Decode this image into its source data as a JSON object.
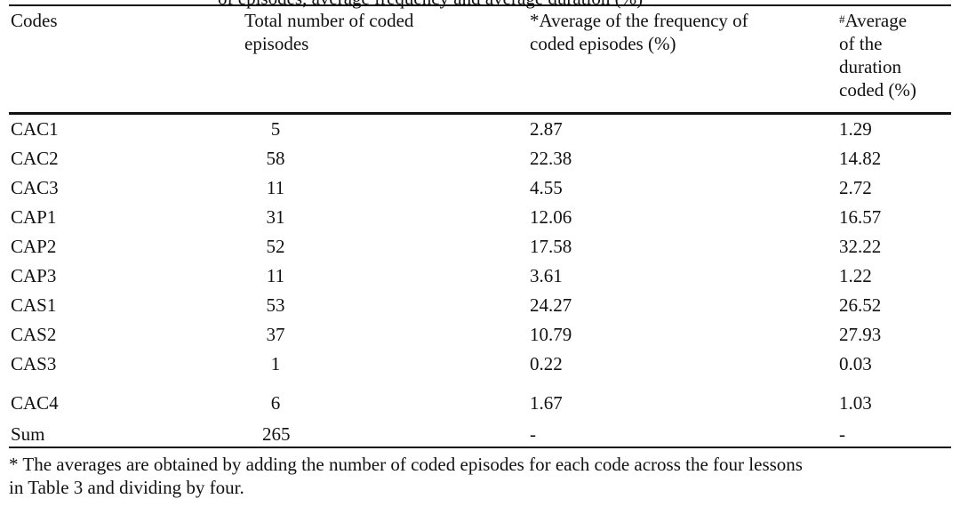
{
  "caption_fragment": "of episodes, average frequency and average duration (%)",
  "headers": {
    "codes": "Codes",
    "total_line1": "Total number of coded",
    "total_line2": "episodes",
    "freq_line1": "*Average of the frequency of",
    "freq_line2": "coded episodes (%)",
    "dur_sup": "#",
    "dur_line1": "Average",
    "dur_line2": "of the",
    "dur_line3": "duration",
    "dur_line4": "coded (%)"
  },
  "rows": [
    {
      "code": "CAC1",
      "total": "5",
      "freq": "2.87",
      "dur": "1.29"
    },
    {
      "code": "CAC2",
      "total": "58",
      "freq": "22.38",
      "dur": "14.82"
    },
    {
      "code": "CAC3",
      "total": "11",
      "freq": "4.55",
      "dur": "2.72"
    },
    {
      "code": "CAP1",
      "total": "31",
      "freq": "12.06",
      "dur": "16.57"
    },
    {
      "code": "CAP2",
      "total": "52",
      "freq": "17.58",
      "dur": "32.22"
    },
    {
      "code": "CAP3",
      "total": "11",
      "freq": "3.61",
      "dur": "1.22"
    },
    {
      "code": "CAS1",
      "total": "53",
      "freq": "24.27",
      "dur": "26.52"
    },
    {
      "code": "CAS2",
      "total": "37",
      "freq": "10.79",
      "dur": "27.93"
    },
    {
      "code": "CAS3",
      "total": "1",
      "freq": "0.22",
      "dur": "0.03"
    },
    {
      "code": "CAC4",
      "total": "6",
      "freq": "1.67",
      "dur": "1.03"
    },
    {
      "code": "Sum",
      "total": "265",
      "freq": "-",
      "dur": "-"
    }
  ],
  "footnote": {
    "line1": "* The averages are obtained by adding the number of coded episodes for each code across the four lessons",
    "line2": "in Table 3 and dividing by four."
  }
}
